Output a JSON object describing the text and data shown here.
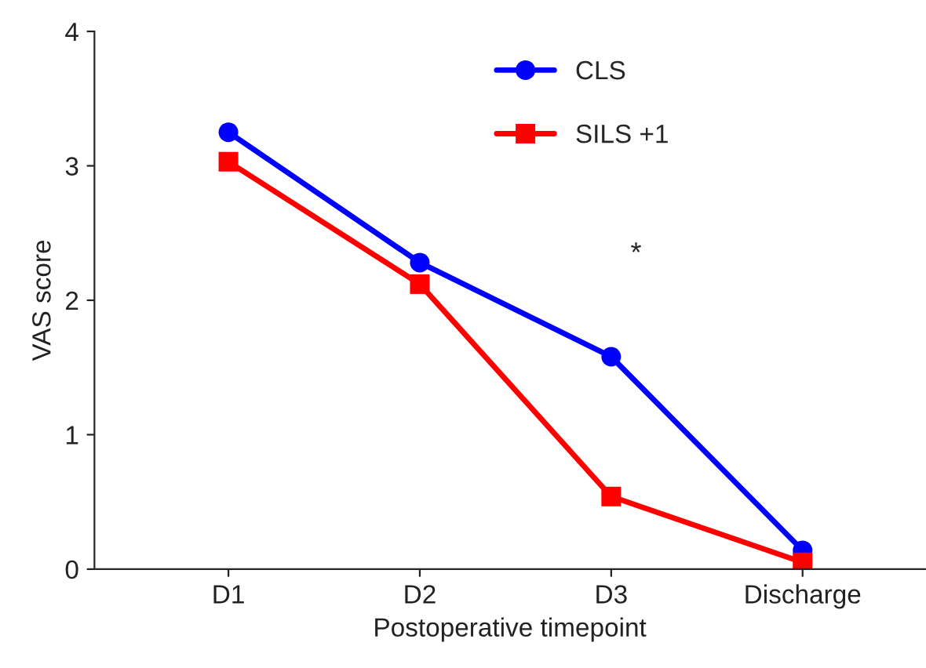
{
  "chart_data": {
    "type": "line",
    "xlabel": "Postoperative timepoint",
    "ylabel": "VAS score",
    "categories": [
      "D1",
      "D2",
      "D3",
      "Discharge"
    ],
    "series": [
      {
        "name": "CLS",
        "color": "#0000ff",
        "marker": "circle",
        "values": [
          3.25,
          2.28,
          1.58,
          0.14
        ]
      },
      {
        "name": "SILS +1",
        "color": "#ff0000",
        "marker": "square",
        "values": [
          3.03,
          2.12,
          0.54,
          0.05
        ]
      }
    ],
    "ylim": [
      0,
      4
    ],
    "yticks": [
      0,
      1,
      2,
      3,
      4
    ],
    "grid": false,
    "legend": "top right",
    "line_style": "solid",
    "annotations": [
      "*"
    ]
  }
}
